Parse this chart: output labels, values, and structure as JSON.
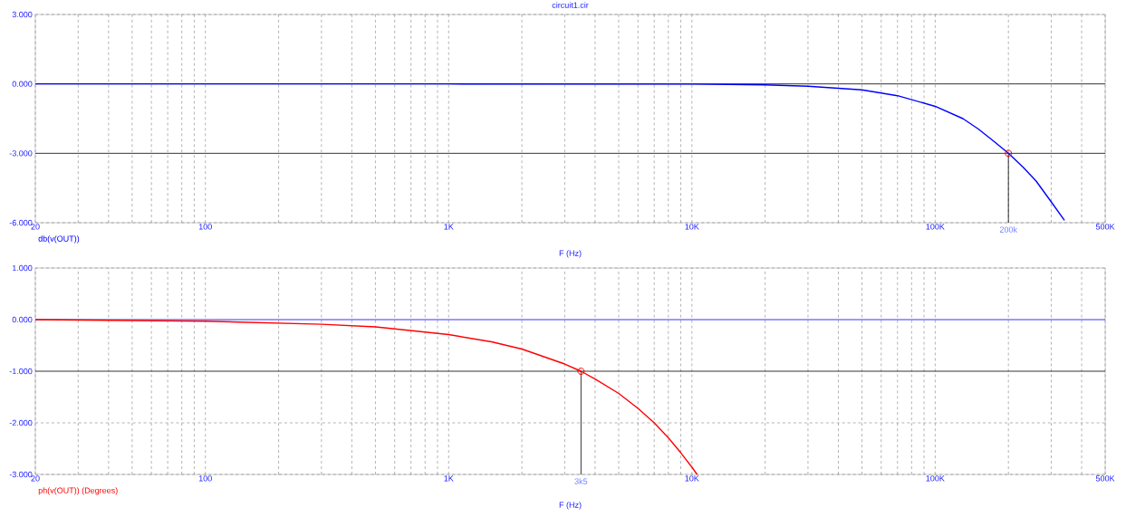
{
  "chart_data": [
    {
      "type": "line",
      "title": "circuit1.cir",
      "xlabel": "F (Hz)",
      "legend": "bottom left",
      "log": "x",
      "grid": true,
      "xlim": [
        20,
        500000
      ],
      "ylim": [
        -6,
        3
      ],
      "xticks": [
        {
          "value": 20,
          "label": "20"
        },
        {
          "value": 30,
          "label": null
        },
        {
          "value": 40,
          "label": null
        },
        {
          "value": 50,
          "label": null
        },
        {
          "value": 60,
          "label": null
        },
        {
          "value": 70,
          "label": null
        },
        {
          "value": 80,
          "label": null
        },
        {
          "value": 90,
          "label": null
        },
        {
          "value": 100,
          "label": "100"
        },
        {
          "value": 200,
          "label": null
        },
        {
          "value": 300,
          "label": null
        },
        {
          "value": 400,
          "label": null
        },
        {
          "value": 500,
          "label": null
        },
        {
          "value": 600,
          "label": null
        },
        {
          "value": 700,
          "label": null
        },
        {
          "value": 800,
          "label": null
        },
        {
          "value": 900,
          "label": null
        },
        {
          "value": 1000,
          "label": "1K"
        },
        {
          "value": 2000,
          "label": null
        },
        {
          "value": 3000,
          "label": null
        },
        {
          "value": 4000,
          "label": null
        },
        {
          "value": 5000,
          "label": null
        },
        {
          "value": 6000,
          "label": null
        },
        {
          "value": 7000,
          "label": null
        },
        {
          "value": 8000,
          "label": null
        },
        {
          "value": 9000,
          "label": null
        },
        {
          "value": 10000,
          "label": "10K"
        },
        {
          "value": 20000,
          "label": null
        },
        {
          "value": 30000,
          "label": null
        },
        {
          "value": 40000,
          "label": null
        },
        {
          "value": 50000,
          "label": null
        },
        {
          "value": 60000,
          "label": null
        },
        {
          "value": 70000,
          "label": null
        },
        {
          "value": 80000,
          "label": null
        },
        {
          "value": 90000,
          "label": null
        },
        {
          "value": 100000,
          "label": "100K"
        },
        {
          "value": 200000,
          "label": null
        },
        {
          "value": 300000,
          "label": null
        },
        {
          "value": 400000,
          "label": null
        },
        {
          "value": 500000,
          "label": "500K"
        }
      ],
      "yticks": [
        {
          "value": 3,
          "label": "3.000"
        },
        {
          "value": 0,
          "label": "0.000"
        },
        {
          "value": -3,
          "label": "-3.000"
        },
        {
          "value": -6,
          "label": "-6.000"
        }
      ],
      "ref_lines": [
        {
          "axis": "y",
          "value": 0,
          "color": "#000000"
        },
        {
          "axis": "y",
          "value": -3,
          "color": "#000000"
        },
        {
          "axis": "x",
          "value": 200000,
          "label": "200k",
          "color": "#000000"
        }
      ],
      "series": [
        {
          "type": "line",
          "name": "db(v(OUT))",
          "color": "#0000ff",
          "x": [
            20,
            1000,
            10000,
            20000,
            30000,
            50000,
            70000,
            100000,
            130000,
            150000,
            170000,
            200000,
            230000,
            260000,
            300000,
            340000
          ],
          "values": [
            0,
            0,
            -0.01,
            -0.04,
            -0.1,
            -0.26,
            -0.51,
            -0.97,
            -1.5,
            -1.94,
            -2.39,
            -3.0,
            -3.6,
            -4.2,
            -5.1,
            -5.9
          ]
        },
        {
          "type": "scatter",
          "marker": "circle",
          "color": "#ff0000",
          "x": [
            200000
          ],
          "values": [
            -3
          ]
        }
      ]
    },
    {
      "type": "line",
      "xlabel": "F (Hz)",
      "legend": "bottom left",
      "log": "x",
      "grid": true,
      "xlim": [
        20,
        500000
      ],
      "ylim": [
        -3,
        1
      ],
      "xticks": [
        {
          "value": 20,
          "label": "20"
        },
        {
          "value": 30,
          "label": null
        },
        {
          "value": 40,
          "label": null
        },
        {
          "value": 50,
          "label": null
        },
        {
          "value": 60,
          "label": null
        },
        {
          "value": 70,
          "label": null
        },
        {
          "value": 80,
          "label": null
        },
        {
          "value": 90,
          "label": null
        },
        {
          "value": 100,
          "label": "100"
        },
        {
          "value": 200,
          "label": null
        },
        {
          "value": 300,
          "label": null
        },
        {
          "value": 400,
          "label": null
        },
        {
          "value": 500,
          "label": null
        },
        {
          "value": 600,
          "label": null
        },
        {
          "value": 700,
          "label": null
        },
        {
          "value": 800,
          "label": null
        },
        {
          "value": 900,
          "label": null
        },
        {
          "value": 1000,
          "label": "1K"
        },
        {
          "value": 2000,
          "label": null
        },
        {
          "value": 3000,
          "label": null
        },
        {
          "value": 4000,
          "label": null
        },
        {
          "value": 5000,
          "label": null
        },
        {
          "value": 6000,
          "label": null
        },
        {
          "value": 7000,
          "label": null
        },
        {
          "value": 8000,
          "label": null
        },
        {
          "value": 9000,
          "label": null
        },
        {
          "value": 10000,
          "label": "10K"
        },
        {
          "value": 20000,
          "label": null
        },
        {
          "value": 30000,
          "label": null
        },
        {
          "value": 40000,
          "label": null
        },
        {
          "value": 50000,
          "label": null
        },
        {
          "value": 60000,
          "label": null
        },
        {
          "value": 70000,
          "label": null
        },
        {
          "value": 80000,
          "label": null
        },
        {
          "value": 90000,
          "label": null
        },
        {
          "value": 100000,
          "label": "100K"
        },
        {
          "value": 200000,
          "label": null
        },
        {
          "value": 300000,
          "label": null
        },
        {
          "value": 400000,
          "label": null
        },
        {
          "value": 500000,
          "label": "500K"
        }
      ],
      "yticks": [
        {
          "value": 1,
          "label": "1.000"
        },
        {
          "value": 0,
          "label": "0.000"
        },
        {
          "value": -1,
          "label": "-1.000"
        },
        {
          "value": -2,
          "label": "-2.000"
        },
        {
          "value": -3,
          "label": "-3.000"
        }
      ],
      "ref_lines": [
        {
          "axis": "y",
          "value": 0,
          "color": "#0000ff"
        },
        {
          "axis": "y",
          "value": -1,
          "color": "#000000"
        },
        {
          "axis": "x",
          "value": 3500,
          "label": "3k5",
          "color": "#000000"
        }
      ],
      "series": [
        {
          "type": "line",
          "name": "ph(v(OUT)) (Degrees)",
          "color": "#ff0000",
          "x": [
            20,
            100,
            300,
            500,
            1000,
            1500,
            2000,
            3000,
            3500,
            4000,
            5000,
            6000,
            7000,
            8000,
            9000,
            10000,
            10500
          ],
          "values": [
            0,
            -0.03,
            -0.09,
            -0.14,
            -0.29,
            -0.43,
            -0.57,
            -0.86,
            -1.0,
            -1.15,
            -1.43,
            -1.72,
            -2.0,
            -2.29,
            -2.58,
            -2.86,
            -3.0
          ]
        },
        {
          "type": "scatter",
          "marker": "circle",
          "color": "#ff0000",
          "x": [
            3500
          ],
          "values": [
            -1
          ]
        }
      ]
    }
  ]
}
